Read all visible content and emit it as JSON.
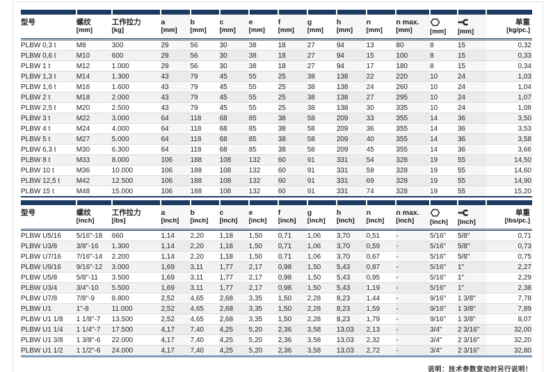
{
  "page": {
    "note": "说明：技术参数变动时另行说明！"
  },
  "colors": {
    "header_bar_navy": "#1a3a5f",
    "imperial_bottom_rule_steelblue": "#7d9db8",
    "row_stripe_gray": "#f2f2f2"
  },
  "tables": [
    {
      "id": "metric",
      "columns": [
        {
          "key": "model",
          "label": "型号",
          "unit": ""
        },
        {
          "key": "thread",
          "label": "螺纹",
          "unit": "[mm]"
        },
        {
          "key": "working-load",
          "label": "工作拉力",
          "unit": "[kg]"
        },
        {
          "key": "a",
          "label": "a",
          "unit": "[mm]"
        },
        {
          "key": "b",
          "label": "b",
          "unit": "[mm]"
        },
        {
          "key": "c",
          "label": "c",
          "unit": "[mm]"
        },
        {
          "key": "e",
          "label": "e",
          "unit": "[mm]"
        },
        {
          "key": "f",
          "label": "f",
          "unit": "[mm]"
        },
        {
          "key": "g",
          "label": "g",
          "unit": "[mm]"
        },
        {
          "key": "h",
          "label": "h",
          "unit": "[mm]"
        },
        {
          "key": "n",
          "label": "n",
          "unit": "[mm]"
        },
        {
          "key": "n-max",
          "label": "n max.",
          "unit": "[mm]"
        },
        {
          "key": "hex-socket",
          "label": "",
          "unit": "[mm]",
          "icon": "hex-socket-icon"
        },
        {
          "key": "wrench",
          "label": "",
          "unit": "[mm]",
          "icon": "wrench-icon"
        },
        {
          "key": "unit-weight",
          "label": "单重",
          "unit": "[kg/pc.]"
        }
      ],
      "rows": [
        [
          "PLBW 0,3 t",
          "M8",
          "300",
          "29",
          "56",
          "30",
          "38",
          "18",
          "27",
          "94",
          "13",
          "80",
          "8",
          "15",
          "0,32"
        ],
        [
          "PLBW 0,6 t",
          "M10",
          "600",
          "29",
          "56",
          "30",
          "38",
          "18",
          "27",
          "94",
          "15",
          "100",
          "8",
          "15",
          "0,33"
        ],
        [
          "PLBW 1 t",
          "M12",
          "1.000",
          "29",
          "56",
          "30",
          "38",
          "18",
          "27",
          "94",
          "17",
          "180",
          "8",
          "15",
          "0,34"
        ],
        [
          "PLBW 1,3 t",
          "M14",
          "1.300",
          "43",
          "79",
          "45",
          "55",
          "25",
          "38",
          "138",
          "22",
          "220",
          "10",
          "24",
          "1,03"
        ],
        [
          "PLBW 1,6 t",
          "M16",
          "1.600",
          "43",
          "79",
          "45",
          "55",
          "25",
          "38",
          "138",
          "24",
          "260",
          "10",
          "24",
          "1,04"
        ],
        [
          "PLBW 2 t",
          "M18",
          "2.000",
          "43",
          "79",
          "45",
          "55",
          "25",
          "38",
          "138",
          "27",
          "295",
          "10",
          "24",
          "1,07"
        ],
        [
          "PLBW 2,5 t",
          "M20",
          "2.500",
          "43",
          "79",
          "45",
          "55",
          "25",
          "38",
          "138",
          "30",
          "335",
          "10",
          "24",
          "1,08"
        ],
        [
          "PLBW 3 t",
          "M22",
          "3.000",
          "64",
          "118",
          "68",
          "85",
          "38",
          "58",
          "209",
          "33",
          "355",
          "14",
          "36",
          "3,50"
        ],
        [
          "PLBW 4 t",
          "M24",
          "4.000",
          "64",
          "118",
          "68",
          "85",
          "38",
          "58",
          "209",
          "36",
          "355",
          "14",
          "36",
          "3,53"
        ],
        [
          "PLBW 5 t",
          "M27",
          "5.000",
          "64",
          "118",
          "68",
          "85",
          "38",
          "58",
          "209",
          "40",
          "355",
          "14",
          "36",
          "3,58"
        ],
        [
          "PLBW 6,3 t",
          "M30",
          "6.300",
          "64",
          "118",
          "68",
          "85",
          "38",
          "58",
          "209",
          "45",
          "355",
          "14",
          "36",
          "3,66"
        ],
        [
          "PLBW 8 t",
          "M33",
          "8.000",
          "106",
          "188",
          "108",
          "132",
          "60",
          "91",
          "331",
          "54",
          "328",
          "19",
          "55",
          "14,50"
        ],
        [
          "PLBW 10 t",
          "M36",
          "10.000",
          "106",
          "188",
          "108",
          "132",
          "60",
          "91",
          "331",
          "59",
          "328",
          "19",
          "55",
          "14,60"
        ],
        [
          "PLBW 12,5 t",
          "M42",
          "12.500",
          "106",
          "188",
          "108",
          "132",
          "60",
          "91",
          "331",
          "69",
          "328",
          "19",
          "55",
          "14,90"
        ],
        [
          "PLBW 15 t",
          "M48",
          "15.000",
          "106",
          "188",
          "108",
          "132",
          "60",
          "91",
          "331",
          "74",
          "328",
          "19",
          "55",
          "15,20"
        ]
      ]
    },
    {
      "id": "imperial",
      "columns": [
        {
          "key": "model",
          "label": "型号",
          "unit": ""
        },
        {
          "key": "thread",
          "label": "螺纹",
          "unit": "[inch]"
        },
        {
          "key": "working-load",
          "label": "工作拉力",
          "unit": "[lbs]"
        },
        {
          "key": "a",
          "label": "a",
          "unit": "[inch]"
        },
        {
          "key": "b",
          "label": "b",
          "unit": "[inch]"
        },
        {
          "key": "c",
          "label": "c",
          "unit": "[inch]"
        },
        {
          "key": "e",
          "label": "e",
          "unit": "[inch]"
        },
        {
          "key": "f",
          "label": "f",
          "unit": "[inch]"
        },
        {
          "key": "g",
          "label": "g",
          "unit": "[inch]"
        },
        {
          "key": "h",
          "label": "h",
          "unit": "[inch]"
        },
        {
          "key": "n",
          "label": "n",
          "unit": "[inch]"
        },
        {
          "key": "n-max",
          "label": "n max.",
          "unit": "[inch]"
        },
        {
          "key": "hex-socket",
          "label": "",
          "unit": "[inch]",
          "icon": "hex-socket-icon"
        },
        {
          "key": "wrench",
          "label": "",
          "unit": "[inch]",
          "icon": "wrench-icon"
        },
        {
          "key": "unit-weight",
          "label": "单重",
          "unit": "[lbs/pc.]"
        }
      ],
      "rows": [
        [
          "PLBW U5/16",
          "5/16\"-18",
          "660",
          "1,14",
          "2,20",
          "1,18",
          "1,50",
          "0,71",
          "1,06",
          "3,70",
          "0,51",
          "-",
          "5/16\"",
          "5/8\"",
          "0,71"
        ],
        [
          "PLBW U3/8",
          "3/8\"-16",
          "1.300",
          "1,14",
          "2,20",
          "1,18",
          "1,50",
          "0,71",
          "1,06",
          "3,70",
          "0,59",
          "-",
          "5/16\"",
          "5/8\"",
          "0,73"
        ],
        [
          "PLBW U7/16",
          "7/16\"-14",
          "2.200",
          "1,14",
          "2,20",
          "1,18",
          "1,50",
          "0,71",
          "1,06",
          "3,70",
          "0,67",
          "-",
          "5/16\"",
          "5/8\"",
          "0,75"
        ],
        [
          "PLBW U9/16",
          "9/16\"-12",
          "3.000",
          "1,69",
          "3,11",
          "1,77",
          "2,17",
          "0,98",
          "1,50",
          "5,43",
          "0,87",
          "-",
          "5/16\"",
          "1\"",
          "2,27"
        ],
        [
          "PLBW U5/8",
          "5/8\"-11",
          "3.500",
          "1,69",
          "3,11",
          "1,77",
          "2,17",
          "0,98",
          "1,50",
          "5,43",
          "0,95",
          "-",
          "5/16\"",
          "1\"",
          "2,29"
        ],
        [
          "PLBW U3/4",
          "3/4\"-10",
          "5.500",
          "1,69",
          "3,11",
          "1,77",
          "2,17",
          "0,98",
          "1,50",
          "5,43",
          "1,19",
          "-",
          "5/16\"",
          "1\"",
          "2,38"
        ],
        [
          "PLBW U7/8",
          "7/8\"-9",
          "8.800",
          "2,52",
          "4,65",
          "2,68",
          "3,35",
          "1,50",
          "2,28",
          "8,23",
          "1,44",
          "-",
          "9/16\"",
          "1 3/8\"",
          "7,78"
        ],
        [
          "PLBW U1",
          "1\"-8",
          "11.000",
          "2,52",
          "4,65",
          "2,68",
          "3,35",
          "1,50",
          "2,28",
          "8,23",
          "1,59",
          "-",
          "9/16\"",
          "1 3/8\"",
          "7,89"
        ],
        [
          "PLBW U1 1/8",
          "1 1/8\"-7",
          "13.500",
          "2,52",
          "4,65",
          "2,68",
          "3,35",
          "1,50",
          "2,28",
          "8,23",
          "1,79",
          "-",
          "9/16\"",
          "1 3/8\"",
          "8,07"
        ],
        [
          "PLBW U1 1/4",
          "1 1/4\"-7",
          "17.500",
          "4,17",
          "7,40",
          "4,25",
          "5,20",
          "2,36",
          "3,58",
          "13,03",
          "2,13",
          "-",
          "3/4\"",
          "2 3/16\"",
          "32,00"
        ],
        [
          "PLBW U1 3/8",
          "1 3/8\"-6",
          "22.000",
          "4,17",
          "7,40",
          "4,25",
          "5,20",
          "2,36",
          "3,58",
          "13,03",
          "2,32",
          "-",
          "3/4\"",
          "2 3/16\"",
          "32,20"
        ],
        [
          "PLBW U1 1/2",
          "1 1/2\"-6",
          "24.000",
          "4,17",
          "7,40",
          "4,25",
          "5,20",
          "2,36",
          "3,58",
          "13,03",
          "2,72",
          "-",
          "3/4\"",
          "2 3/16\"",
          "32,80"
        ]
      ]
    }
  ]
}
